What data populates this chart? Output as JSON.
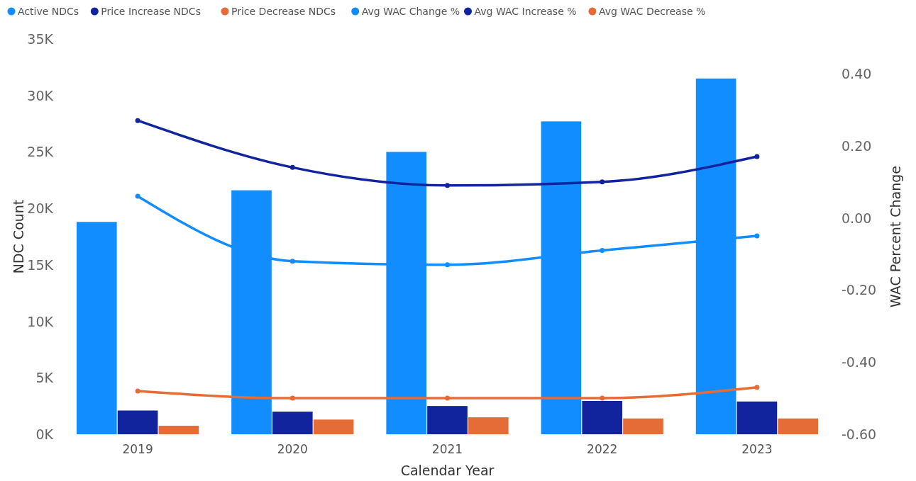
{
  "chart_data": {
    "type": "bar",
    "xlabel": "Calendar Year",
    "ylabel": "NDC Count",
    "y2label": "WAC Percent Change",
    "categories": [
      "2019",
      "2020",
      "2021",
      "2022",
      "2023"
    ],
    "series": [
      {
        "name": "Active NDCs",
        "color": "#118dff",
        "values": [
          18800,
          21600,
          25000,
          27700,
          31500
        ]
      },
      {
        "name": "Price Increase NDCs",
        "color": "#12239e",
        "values": [
          2100,
          2000,
          2500,
          2950,
          2900
        ]
      },
      {
        "name": "Price Decrease NDCs",
        "color": "#e66c37",
        "values": [
          750,
          1300,
          1500,
          1400,
          1400
        ]
      },
      {
        "name": "Avg WAC Change %",
        "type": "line",
        "axis": "y2",
        "color": "#118dff",
        "values": [
          0.06,
          -0.12,
          -0.13,
          -0.09,
          -0.05
        ]
      },
      {
        "name": "Avg WAC Increase %",
        "type": "line",
        "axis": "y2",
        "color": "#12239e",
        "values": [
          0.27,
          0.14,
          0.09,
          0.1,
          0.17
        ]
      },
      {
        "name": "Avg WAC Decrease %",
        "type": "line",
        "axis": "y2",
        "color": "#e66c37",
        "values": [
          -0.48,
          -0.5,
          -0.5,
          -0.5,
          -0.47
        ]
      }
    ],
    "ylim": [
      0,
      35000
    ],
    "yticks": [
      {
        "value": 0,
        "label": "0K"
      },
      {
        "value": 5000,
        "label": "5K"
      },
      {
        "value": 10000,
        "label": "10K"
      },
      {
        "value": 15000,
        "label": "15K"
      },
      {
        "value": 20000,
        "label": "20K"
      },
      {
        "value": 25000,
        "label": "25K"
      },
      {
        "value": 30000,
        "label": "30K"
      },
      {
        "value": 35000,
        "label": "35K"
      }
    ],
    "y2lim": [
      -0.6,
      0.4
    ],
    "y2ticks": [
      {
        "value": -0.6,
        "label": "-0.60"
      },
      {
        "value": -0.4,
        "label": "-0.40"
      },
      {
        "value": -0.2,
        "label": "-0.20"
      },
      {
        "value": 0,
        "label": "0.00"
      },
      {
        "value": 0.2,
        "label": "0.20"
      },
      {
        "value": 0.4,
        "label": "0.40"
      }
    ],
    "legend": "top left",
    "grid": false,
    "marker": "circle",
    "line_style": "solid"
  }
}
